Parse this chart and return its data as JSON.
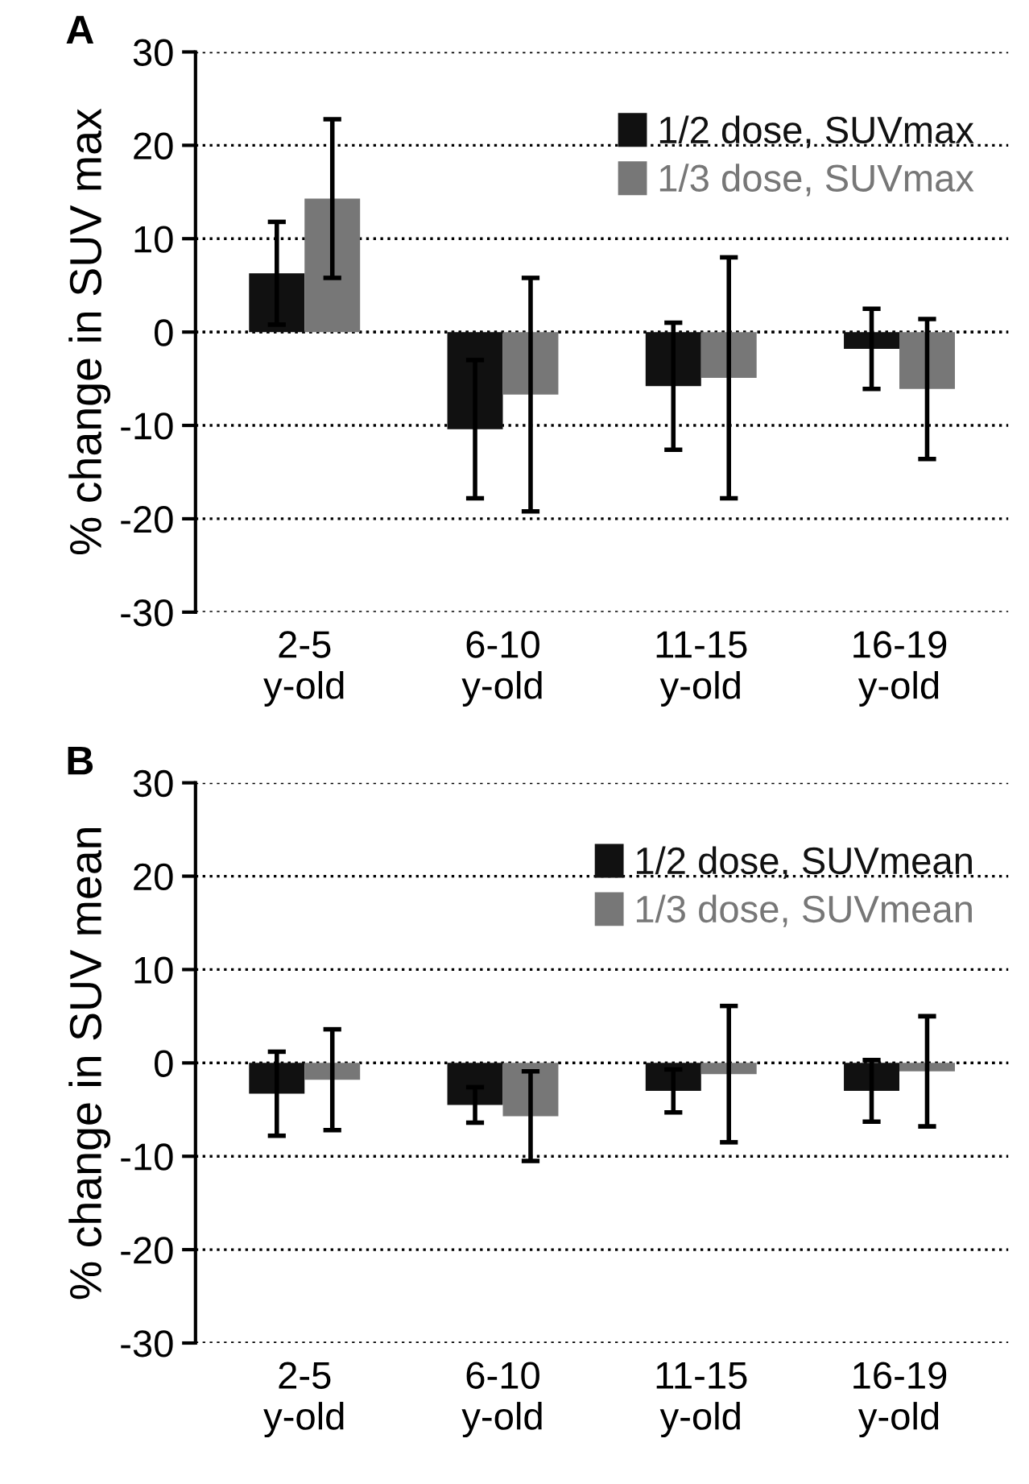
{
  "chart_data": [
    {
      "type": "bar",
      "title": "A",
      "ylabel": "% change in SUV max",
      "categories": [
        "2-5\ny-old",
        "6-10\ny-old",
        "11-15\ny-old",
        "16-19\ny-old"
      ],
      "series": [
        {
          "name": "1/2 dose, SUVmax",
          "color": "#111111",
          "values": [
            6.3,
            -10.4,
            -5.8,
            -1.8
          ],
          "errors": [
            5.5,
            7.4,
            6.8,
            4.3
          ]
        },
        {
          "name": "1/3 dose, SUVmax",
          "color": "#777777",
          "values": [
            14.3,
            -6.7,
            -4.9,
            -6.1
          ],
          "errors": [
            8.5,
            12.5,
            12.9,
            7.5
          ]
        }
      ],
      "ylim": [
        -30,
        30
      ],
      "yticks": [
        -30,
        -20,
        -10,
        0,
        10,
        20,
        30
      ],
      "grid": "y",
      "legend": "top right"
    },
    {
      "type": "bar",
      "title": "B",
      "ylabel": "% change in SUV mean",
      "categories": [
        "2-5\ny-old",
        "6-10\ny-old",
        "11-15\ny-old",
        "16-19\ny-old"
      ],
      "series": [
        {
          "name": "1/2 dose, SUVmean",
          "color": "#111111",
          "values": [
            -3.3,
            -4.5,
            -3.0,
            -3.0
          ],
          "errors": [
            4.5,
            1.9,
            2.3,
            3.3
          ]
        },
        {
          "name": "1/3 dose, SUVmean",
          "color": "#777777",
          "values": [
            -1.8,
            -5.7,
            -1.2,
            -0.9
          ],
          "errors": [
            5.4,
            4.8,
            7.3,
            5.9
          ]
        }
      ],
      "ylim": [
        -30,
        30
      ],
      "yticks": [
        -30,
        -20,
        -10,
        0,
        10,
        20,
        30
      ],
      "grid": "y",
      "legend": "top right"
    }
  ]
}
